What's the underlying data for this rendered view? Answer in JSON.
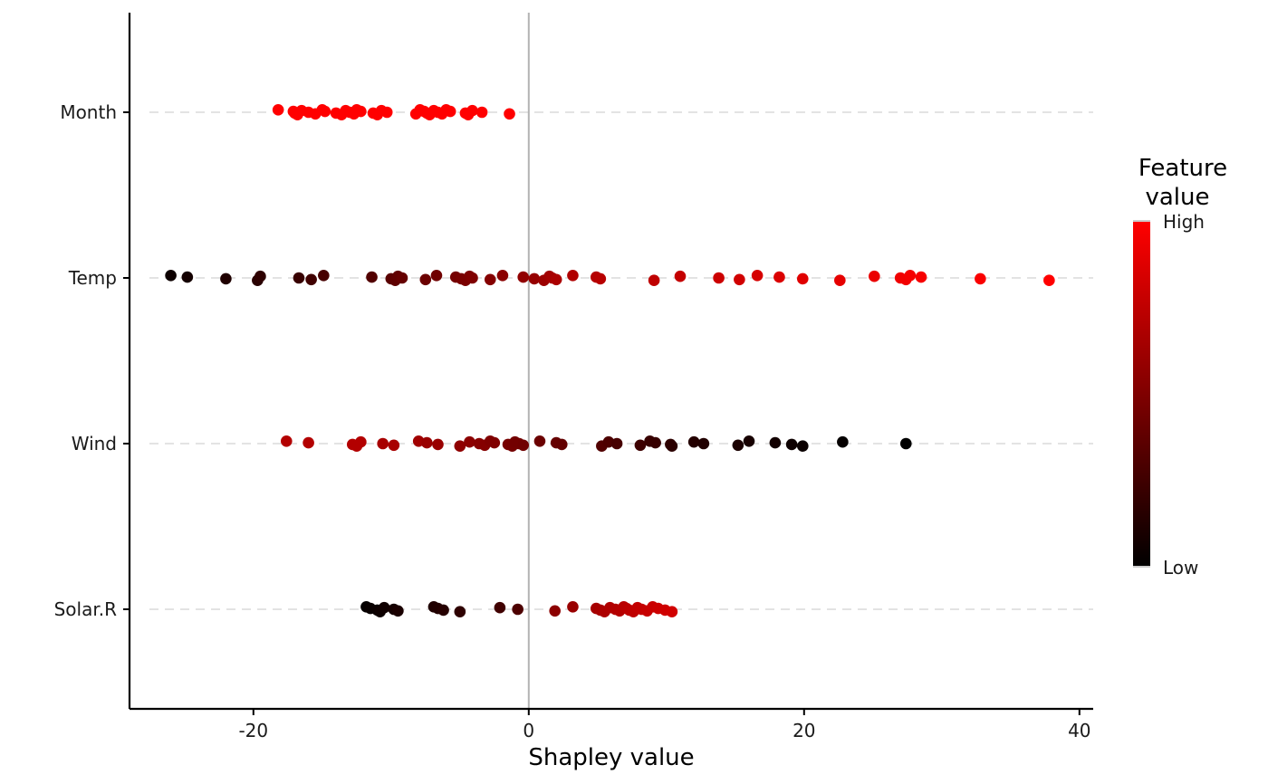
{
  "chart_data": {
    "type": "scatter",
    "title": "",
    "xlabel": "Shapley value",
    "ylabel": "",
    "xlim": [
      -29,
      41
    ],
    "x_ticks": [
      -20,
      0,
      20,
      40
    ],
    "x_tick_labels": [
      "-20",
      "0",
      "20",
      "40"
    ],
    "grid": "dashed horizontal lines at each feature",
    "zero_line": 0,
    "categories": [
      "Month",
      "Temp",
      "Wind",
      "Solar.R"
    ],
    "legend": {
      "title_lines": [
        "Feature",
        "value"
      ],
      "high_label": "High",
      "low_label": "Low",
      "high_color": "#ff0000",
      "low_color": "#000000",
      "placement": "right"
    },
    "series": [
      {
        "feature": "Month",
        "points": [
          [
            -18.2,
            1.0
          ],
          [
            -17.1,
            1.0
          ],
          [
            -17.0,
            1.0
          ],
          [
            -16.8,
            1.0
          ],
          [
            -16.5,
            1.0
          ],
          [
            -16.0,
            1.0
          ],
          [
            -15.5,
            1.0
          ],
          [
            -15.0,
            1.0
          ],
          [
            -14.8,
            1.0
          ],
          [
            -14.0,
            1.0
          ],
          [
            -13.6,
            1.0
          ],
          [
            -13.3,
            1.0
          ],
          [
            -13.0,
            1.0
          ],
          [
            -12.7,
            1.0
          ],
          [
            -12.5,
            1.0
          ],
          [
            -12.2,
            1.0
          ],
          [
            -11.3,
            1.0
          ],
          [
            -11.0,
            1.0
          ],
          [
            -10.7,
            1.0
          ],
          [
            -10.3,
            1.0
          ],
          [
            -8.2,
            1.0
          ],
          [
            -7.9,
            1.0
          ],
          [
            -7.6,
            1.0
          ],
          [
            -7.4,
            1.0
          ],
          [
            -7.2,
            1.0
          ],
          [
            -6.9,
            1.0
          ],
          [
            -6.6,
            1.0
          ],
          [
            -6.3,
            1.0
          ],
          [
            -6.0,
            1.0
          ],
          [
            -5.7,
            1.0
          ],
          [
            -4.6,
            1.0
          ],
          [
            -4.4,
            1.0
          ],
          [
            -4.1,
            1.0
          ],
          [
            -3.4,
            1.0
          ],
          [
            -1.4,
            1.0
          ]
        ]
      },
      {
        "feature": "Temp",
        "points": [
          [
            -26.0,
            0.05
          ],
          [
            -24.8,
            0.08
          ],
          [
            -22.0,
            0.12
          ],
          [
            -19.7,
            0.16
          ],
          [
            -19.5,
            0.18
          ],
          [
            -16.7,
            0.22
          ],
          [
            -15.8,
            0.25
          ],
          [
            -14.9,
            0.28
          ],
          [
            -11.4,
            0.32
          ],
          [
            -10.0,
            0.35
          ],
          [
            -9.7,
            0.37
          ],
          [
            -9.5,
            0.38
          ],
          [
            -9.2,
            0.4
          ],
          [
            -7.5,
            0.42
          ],
          [
            -6.7,
            0.44
          ],
          [
            -5.3,
            0.46
          ],
          [
            -4.9,
            0.47
          ],
          [
            -4.6,
            0.48
          ],
          [
            -4.3,
            0.49
          ],
          [
            -4.1,
            0.5
          ],
          [
            -2.8,
            0.52
          ],
          [
            -1.9,
            0.54
          ],
          [
            -0.4,
            0.57
          ],
          [
            0.4,
            0.59
          ],
          [
            1.1,
            0.61
          ],
          [
            1.5,
            0.63
          ],
          [
            1.7,
            0.65
          ],
          [
            2.0,
            0.67
          ],
          [
            3.2,
            0.69
          ],
          [
            4.9,
            0.71
          ],
          [
            5.2,
            0.72
          ],
          [
            9.1,
            0.75
          ],
          [
            11.0,
            0.77
          ],
          [
            13.8,
            0.8
          ],
          [
            15.3,
            0.82
          ],
          [
            16.6,
            0.84
          ],
          [
            18.2,
            0.86
          ],
          [
            19.9,
            0.88
          ],
          [
            22.6,
            0.9
          ],
          [
            25.1,
            0.92
          ],
          [
            27.0,
            0.94
          ],
          [
            27.4,
            0.95
          ],
          [
            27.7,
            0.96
          ],
          [
            28.5,
            0.97
          ],
          [
            32.8,
            0.98
          ],
          [
            37.8,
            1.0
          ]
        ]
      },
      {
        "feature": "Wind",
        "points": [
          [
            -17.6,
            0.7
          ],
          [
            -16.0,
            0.7
          ],
          [
            -12.8,
            0.7
          ],
          [
            -12.5,
            0.7
          ],
          [
            -12.2,
            0.7
          ],
          [
            -10.6,
            0.66
          ],
          [
            -9.8,
            0.66
          ],
          [
            -8.0,
            0.63
          ],
          [
            -7.4,
            0.6
          ],
          [
            -6.6,
            0.6
          ],
          [
            -5.0,
            0.56
          ],
          [
            -4.3,
            0.55
          ],
          [
            -3.6,
            0.53
          ],
          [
            -3.2,
            0.52
          ],
          [
            -2.8,
            0.5
          ],
          [
            -2.5,
            0.5
          ],
          [
            -1.5,
            0.47
          ],
          [
            -1.2,
            0.46
          ],
          [
            -1.0,
            0.45
          ],
          [
            -0.7,
            0.45
          ],
          [
            -0.4,
            0.44
          ],
          [
            0.8,
            0.42
          ],
          [
            2.0,
            0.4
          ],
          [
            2.4,
            0.39
          ],
          [
            5.3,
            0.32
          ],
          [
            5.8,
            0.3
          ],
          [
            6.4,
            0.28
          ],
          [
            8.1,
            0.24
          ],
          [
            8.8,
            0.22
          ],
          [
            9.2,
            0.21
          ],
          [
            10.3,
            0.18
          ],
          [
            10.4,
            0.17
          ],
          [
            12.0,
            0.14
          ],
          [
            12.7,
            0.13
          ],
          [
            15.2,
            0.1
          ],
          [
            16.0,
            0.09
          ],
          [
            17.9,
            0.07
          ],
          [
            19.1,
            0.05
          ],
          [
            19.9,
            0.04
          ],
          [
            22.8,
            0.02
          ],
          [
            27.4,
            0.0
          ]
        ]
      },
      {
        "feature": "Solar.R",
        "points": [
          [
            -11.8,
            0.02
          ],
          [
            -11.5,
            0.03
          ],
          [
            -11.0,
            0.04
          ],
          [
            -10.8,
            0.05
          ],
          [
            -10.5,
            0.06
          ],
          [
            -9.8,
            0.08
          ],
          [
            -9.5,
            0.1
          ],
          [
            -6.9,
            0.12
          ],
          [
            -6.6,
            0.13
          ],
          [
            -6.2,
            0.15
          ],
          [
            -5.0,
            0.18
          ],
          [
            -2.1,
            0.25
          ],
          [
            -0.8,
            0.3
          ],
          [
            1.9,
            0.55
          ],
          [
            3.2,
            0.6
          ],
          [
            4.9,
            0.65
          ],
          [
            5.2,
            0.66
          ],
          [
            5.5,
            0.68
          ],
          [
            5.9,
            0.69
          ],
          [
            6.3,
            0.7
          ],
          [
            6.6,
            0.71
          ],
          [
            6.9,
            0.72
          ],
          [
            7.1,
            0.73
          ],
          [
            7.3,
            0.74
          ],
          [
            7.6,
            0.75
          ],
          [
            7.9,
            0.76
          ],
          [
            8.2,
            0.77
          ],
          [
            8.6,
            0.78
          ],
          [
            9.0,
            0.79
          ],
          [
            9.4,
            0.8
          ],
          [
            9.9,
            0.81
          ],
          [
            10.4,
            0.82
          ]
        ]
      }
    ]
  }
}
